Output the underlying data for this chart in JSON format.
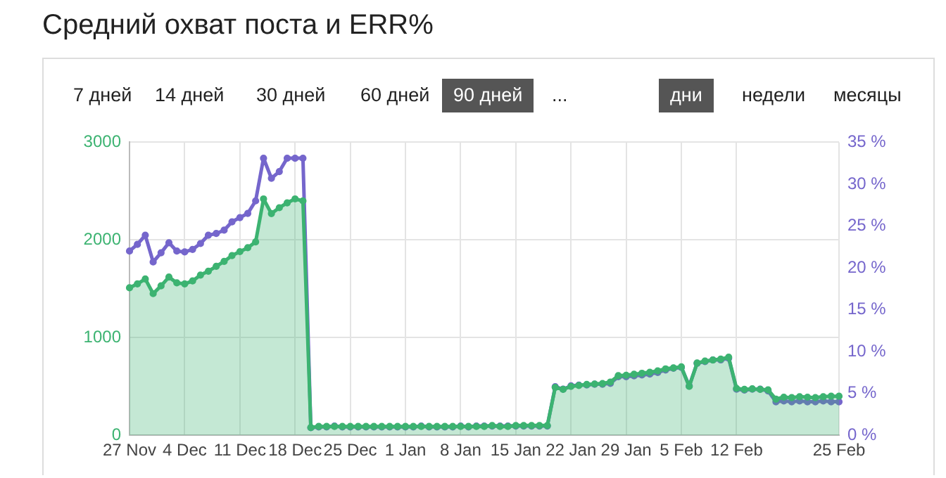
{
  "chart_data": {
    "type": "area",
    "title": "Средний охват поста и ERR%",
    "annotations": [
      "7 дней",
      "14 дней",
      "30 дней",
      "60 дней",
      "90 дней",
      "...",
      "дни",
      "недели",
      "месяцы"
    ],
    "categories": [
      "27 Nov",
      null,
      null,
      null,
      null,
      null,
      null,
      "4 Dec",
      null,
      null,
      null,
      null,
      null,
      null,
      "11 Dec",
      null,
      null,
      null,
      null,
      null,
      null,
      "18 Dec",
      null,
      null,
      null,
      null,
      null,
      null,
      "25 Dec",
      null,
      null,
      null,
      null,
      null,
      null,
      "1 Jan",
      null,
      null,
      null,
      null,
      null,
      null,
      "8 Jan",
      null,
      null,
      null,
      null,
      null,
      null,
      "15 Jan",
      null,
      null,
      null,
      null,
      null,
      null,
      "22 Jan",
      null,
      null,
      null,
      null,
      null,
      null,
      "29 Jan",
      null,
      null,
      null,
      null,
      null,
      null,
      "5 Feb",
      null,
      null,
      null,
      null,
      null,
      null,
      "12 Feb",
      null,
      null,
      null,
      null,
      null,
      null,
      null,
      null,
      null,
      null,
      null,
      null,
      "25 Feb"
    ],
    "series": [
      {
        "color": "#3cb371",
        "values": [
          1510,
          1550,
          1600,
          1450,
          1530,
          1620,
          1560,
          1550,
          1580,
          1640,
          1680,
          1730,
          1780,
          1840,
          1880,
          1920,
          1980,
          2420,
          2270,
          2330,
          2380,
          2420,
          2400,
          80,
          90,
          90,
          90,
          90,
          90,
          90,
          90,
          90,
          90,
          90,
          90,
          90,
          90,
          90,
          90,
          90,
          90,
          90,
          90,
          90,
          90,
          90,
          100,
          90,
          90,
          100,
          100,
          100,
          100,
          100,
          490,
          470,
          500,
          510,
          520,
          525,
          530,
          545,
          610,
          615,
          625,
          635,
          645,
          660,
          680,
          690,
          700,
          500,
          740,
          760,
          770,
          780,
          800,
          480,
          470,
          475,
          470,
          465,
          370,
          390,
          385,
          395,
          390,
          385,
          395,
          400,
          400
        ]
      },
      {
        "type": "line",
        "axis": "y2",
        "color": "#7566cc",
        "values": [
          22.0,
          22.8,
          23.9,
          20.7,
          21.8,
          23.0,
          22.0,
          21.9,
          22.2,
          22.9,
          23.9,
          24.1,
          24.5,
          25.5,
          26.0,
          26.5,
          28.0,
          33.1,
          30.7,
          31.5,
          33.1,
          33.1,
          33.1,
          0.9,
          1.0,
          1.0,
          1.1,
          1.0,
          1.0,
          1.0,
          1.0,
          1.0,
          1.0,
          1.0,
          1.0,
          1.0,
          1.0,
          1.1,
          1.0,
          1.0,
          1.0,
          1.0,
          1.1,
          1.0,
          1.1,
          1.1,
          1.1,
          1.1,
          1.1,
          1.1,
          1.1,
          1.1,
          1.1,
          1.1,
          5.8,
          5.5,
          5.9,
          6.0,
          6.0,
          6.1,
          6.1,
          6.2,
          7.0,
          7.0,
          7.1,
          7.2,
          7.3,
          7.5,
          7.8,
          8.0,
          8.1,
          5.9,
          8.6,
          8.8,
          9.0,
          9.0,
          9.2,
          5.5,
          5.4,
          5.5,
          5.5,
          5.3,
          4.0,
          4.1,
          4.0,
          4.1,
          4.0,
          4.0,
          4.1,
          4.0,
          4.0
        ]
      }
    ],
    "ylim": [
      0,
      3000
    ],
    "yticks": [
      0,
      1000,
      2000,
      3000
    ],
    "y2lim": [
      0,
      35
    ],
    "y2ticks": [
      {
        "value": 0,
        "label": "0 %"
      },
      {
        "value": 5,
        "label": "5 %"
      },
      {
        "value": 10,
        "label": "10 %"
      },
      {
        "value": 15,
        "label": "15 %"
      },
      {
        "value": 20,
        "label": "20 %"
      },
      {
        "value": 25,
        "label": "25 %"
      },
      {
        "value": 30,
        "label": "30 %"
      },
      {
        "value": 35,
        "label": "35 %"
      }
    ],
    "grid": true,
    "marker": "circle",
    "line_style": "solid"
  }
}
